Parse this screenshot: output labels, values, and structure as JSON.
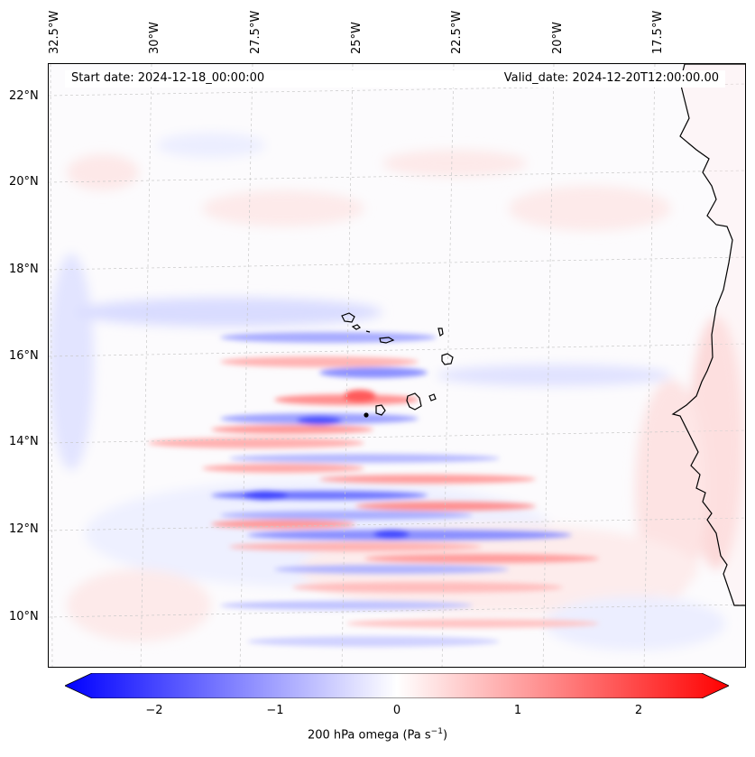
{
  "map": {
    "title_left": "Start date: 2024-12-18_00:00:00",
    "title_right": "Valid_date: 2024-12-20T12:00:00.00",
    "lon_labels": [
      "32.5°W",
      "30°W",
      "27.5°W",
      "25°W",
      "22.5°W",
      "20°W",
      "17.5°W"
    ],
    "lat_labels": [
      "22°N",
      "20°N",
      "18°N",
      "16°N",
      "14°N",
      "12°N",
      "10°N"
    ],
    "colorbar": {
      "ticks": [
        "−2",
        "−1",
        "0",
        "1",
        "2"
      ],
      "label_prefix": "200 hPa omega (Pa s",
      "label_exp": "−1",
      "label_suffix": ")",
      "min_color": "#0000ff",
      "mid_color": "#ffffff",
      "max_color": "#ff0000"
    }
  }
}
